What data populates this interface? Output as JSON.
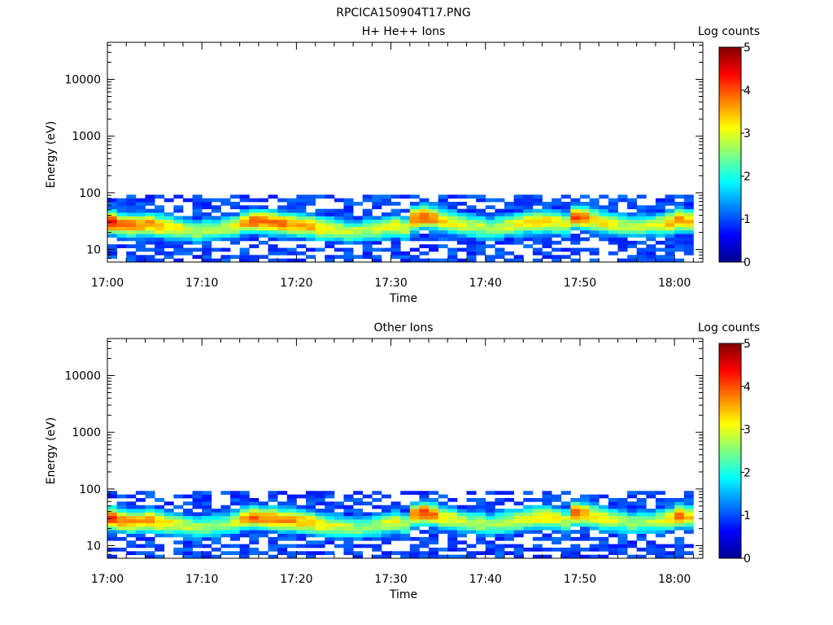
{
  "figure": {
    "title": "RPCICA150904T17.PNG"
  },
  "colormap": {
    "stops": [
      "#00008f",
      "#0000ff",
      "#0080ff",
      "#00ffff",
      "#80ff80",
      "#ffff00",
      "#ff8000",
      "#ff0000",
      "#800000"
    ]
  },
  "chart_data": [
    {
      "type": "heatmap",
      "title": "H+ He++ Ions",
      "xlabel": "Time",
      "ylabel": "Energy (eV)",
      "x_range_minutes": [
        0,
        63
      ],
      "x_ticks": [
        "17:00",
        "17:10",
        "17:20",
        "17:30",
        "17:40",
        "17:50",
        "18:00"
      ],
      "y_scale": "log",
      "y_range": [
        6,
        45000
      ],
      "y_ticks": [
        "10",
        "100",
        "1000",
        "10000"
      ],
      "colorbar": {
        "label": "Log counts",
        "range": [
          0,
          5
        ],
        "ticks": [
          "0",
          "1",
          "2",
          "3",
          "4",
          "5"
        ]
      },
      "band": {
        "energy_min": 6,
        "energy_max": 95,
        "peak_energy": [
          30,
          28,
          27,
          27,
          28,
          26,
          25,
          24,
          22,
          21,
          22,
          23,
          24,
          26,
          30,
          32,
          31,
          30,
          29,
          28,
          27,
          26,
          24,
          23,
          22,
          21,
          21,
          22,
          23,
          25,
          26,
          24,
          35,
          38,
          36,
          32,
          30,
          28,
          26,
          25,
          24,
          25,
          27,
          28,
          30,
          31,
          32,
          30,
          28,
          38,
          36,
          33,
          30,
          28,
          27,
          26,
          26,
          27,
          28,
          30,
          33,
          32,
          30
        ],
        "peak_intensity": [
          4.2,
          3.9,
          3.8,
          3.6,
          3.7,
          3.5,
          3.3,
          3.1,
          2.9,
          2.8,
          2.7,
          2.7,
          2.8,
          3.0,
          3.6,
          4.0,
          3.9,
          3.8,
          3.8,
          3.7,
          3.6,
          3.5,
          3.3,
          3.1,
          3.0,
          2.9,
          2.8,
          2.8,
          2.9,
          3.0,
          3.1,
          2.9,
          3.9,
          4.1,
          3.8,
          3.4,
          3.2,
          3.0,
          2.9,
          2.9,
          2.8,
          2.9,
          3.0,
          3.1,
          3.2,
          3.3,
          3.3,
          3.2,
          3.0,
          4.0,
          3.8,
          3.4,
          3.2,
          3.0,
          2.9,
          2.8,
          2.8,
          2.9,
          3.0,
          3.4,
          3.7,
          3.5,
          3.2
        ]
      }
    },
    {
      "type": "heatmap",
      "title": "Other Ions",
      "xlabel": "Time",
      "ylabel": "Energy (eV)",
      "x_range_minutes": [
        0,
        63
      ],
      "x_ticks": [
        "17:00",
        "17:10",
        "17:20",
        "17:30",
        "17:40",
        "17:50",
        "18:00"
      ],
      "y_scale": "log",
      "y_range": [
        6,
        45000
      ],
      "y_ticks": [
        "10",
        "100",
        "1000",
        "10000"
      ],
      "colorbar": {
        "label": "Log counts",
        "range": [
          0,
          5
        ],
        "ticks": [
          "0",
          "1",
          "2",
          "3",
          "4",
          "5"
        ]
      },
      "band": {
        "energy_min": 6,
        "energy_max": 95,
        "peak_energy": [
          30,
          28,
          27,
          27,
          28,
          26,
          25,
          24,
          22,
          21,
          22,
          23,
          24,
          26,
          30,
          32,
          31,
          30,
          29,
          28,
          27,
          26,
          24,
          23,
          22,
          21,
          21,
          22,
          23,
          25,
          26,
          24,
          35,
          38,
          36,
          32,
          30,
          28,
          26,
          25,
          24,
          25,
          27,
          28,
          30,
          31,
          32,
          30,
          28,
          38,
          36,
          33,
          30,
          28,
          27,
          26,
          26,
          27,
          28,
          30,
          33,
          32,
          30
        ],
        "peak_intensity": [
          4.1,
          3.8,
          3.7,
          3.5,
          3.6,
          3.4,
          3.2,
          3.0,
          2.8,
          2.7,
          2.6,
          2.6,
          2.7,
          2.9,
          3.5,
          3.9,
          3.8,
          3.8,
          3.7,
          3.6,
          3.5,
          3.4,
          3.2,
          3.0,
          2.9,
          2.8,
          2.7,
          2.7,
          2.8,
          2.9,
          3.0,
          2.8,
          3.8,
          4.1,
          3.7,
          3.3,
          3.1,
          2.9,
          2.8,
          2.8,
          2.7,
          2.8,
          2.9,
          3.0,
          3.1,
          3.2,
          3.2,
          3.1,
          2.9,
          4.0,
          3.7,
          3.3,
          3.1,
          2.9,
          2.8,
          2.7,
          2.7,
          2.8,
          2.9,
          3.3,
          3.8,
          3.4,
          3.1
        ]
      }
    }
  ]
}
